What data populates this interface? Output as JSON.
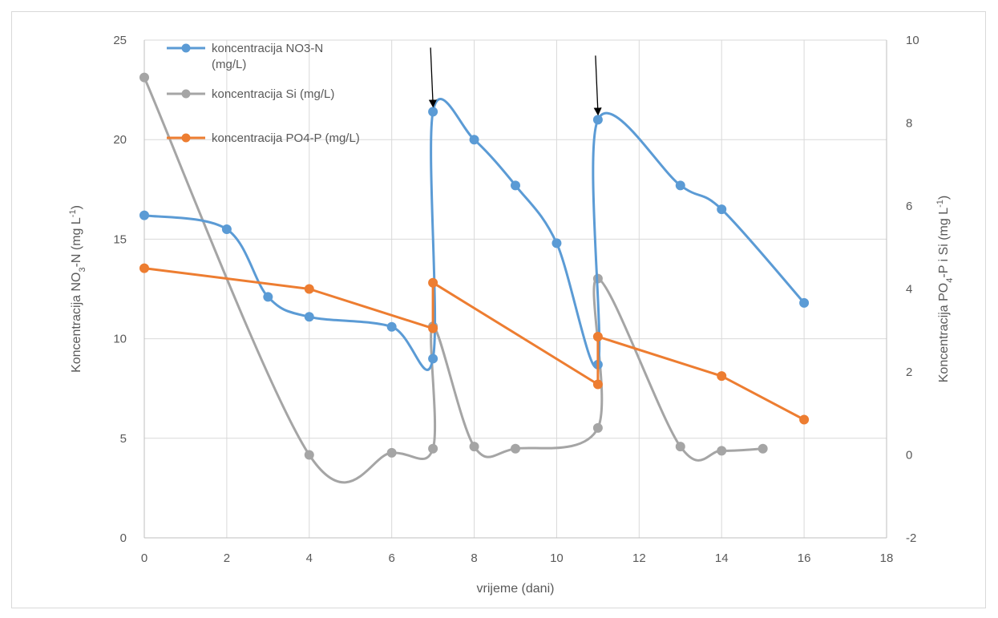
{
  "chart_data": {
    "type": "scatter",
    "xlabel": "vrijeme (dani)",
    "ylabel_left": "Koncentracija NO3-N (mg L-1)",
    "ylabel_right": "Koncentracija PO4-P i Si (mg L-1)",
    "xlim": [
      0,
      18
    ],
    "ylim_left": [
      0,
      25
    ],
    "ylim_right": [
      -2,
      10
    ],
    "xticks": [
      "0",
      "2",
      "4",
      "6",
      "8",
      "10",
      "12",
      "14",
      "16",
      "18"
    ],
    "yticks_left": [
      "0",
      "5",
      "10",
      "15",
      "20",
      "25"
    ],
    "yticks_right": [
      "-2",
      "0",
      "2",
      "4",
      "6",
      "8",
      "10"
    ],
    "grid": true,
    "legend_position": "top-left",
    "series": [
      {
        "name": "koncentracija NO3-N (mg/L)",
        "axis": "left",
        "color": "#5B9BD5",
        "smooth": true,
        "x": [
          0,
          2,
          3,
          4,
          6,
          7,
          7,
          8,
          9,
          10,
          11,
          11,
          13,
          14,
          16
        ],
        "y": [
          16.2,
          15.5,
          12.1,
          11.1,
          10.6,
          9.0,
          21.4,
          20.0,
          17.7,
          14.8,
          8.7,
          21.0,
          17.7,
          16.5,
          11.8
        ]
      },
      {
        "name": "koncentracija Si (mg/L)",
        "axis": "right",
        "color": "#A5A5A5",
        "smooth": true,
        "x": [
          0,
          4,
          6,
          7,
          7,
          8,
          9,
          11,
          11,
          13,
          14,
          15
        ],
        "y": [
          9.1,
          0.0,
          0.05,
          0.15,
          3.1,
          0.2,
          0.15,
          0.65,
          4.25,
          0.2,
          0.1,
          0.15
        ]
      },
      {
        "name": "koncentracija PO4-P (mg/L)",
        "axis": "right",
        "color": "#ED7D31",
        "smooth": false,
        "x": [
          0,
          4,
          7,
          7,
          11,
          11,
          14,
          16
        ],
        "y": [
          4.5,
          4.0,
          3.05,
          4.15,
          1.7,
          2.85,
          1.9,
          0.85
        ]
      }
    ],
    "annotations": [
      {
        "type": "arrow",
        "x": 7,
        "y_left": 21.4
      },
      {
        "type": "arrow",
        "x": 11,
        "y_left": 21.0
      }
    ]
  }
}
